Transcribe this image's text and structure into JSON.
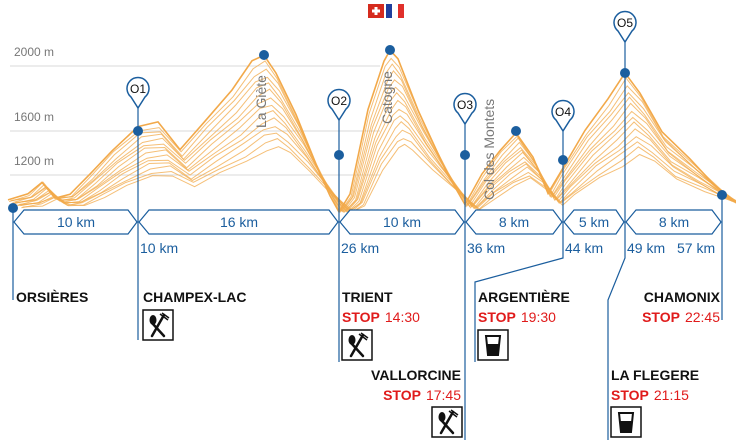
{
  "flags": [
    "swiss-flag-icon",
    "french-flag-icon"
  ],
  "colors": {
    "profile": "#f2a94a",
    "accent": "#1b5e9e",
    "stop": "#e01b1b"
  },
  "altitudes": [
    "2000 m",
    "1600 m",
    "1200 m"
  ],
  "peaks": [
    "La Giète",
    "Catogne",
    "Col des Montets"
  ],
  "checkpoints": [
    "O1",
    "O2",
    "O3",
    "O4",
    "O5"
  ],
  "segments": [
    "10 km",
    "16 km",
    "10 km",
    "8 km",
    "5 km",
    "8 km"
  ],
  "cumulative": [
    "10 km",
    "26 km",
    "36 km",
    "44 km",
    "49 km",
    "57 km"
  ],
  "stations": {
    "orsieres": {
      "name": "ORSIÈRES"
    },
    "champex": {
      "name": "CHAMPEX-LAC",
      "service": "restaurant-icon"
    },
    "trient": {
      "name": "TRIENT",
      "stop": "STOP",
      "time": "14:30",
      "service": "restaurant-icon"
    },
    "vallorcine": {
      "name": "VALLORCINE",
      "stop": "STOP",
      "time": "17:45",
      "service": "restaurant-icon"
    },
    "argentiere": {
      "name": "ARGENTIÈRE",
      "stop": "STOP",
      "time": "19:30",
      "service": "drink-icon"
    },
    "chamonix": {
      "name": "CHAMONIX",
      "stop": "STOP",
      "time": "22:45"
    },
    "laflegere": {
      "name": "LA FLEGERE",
      "stop": "STOP",
      "time": "21:15",
      "service": "drink-icon"
    }
  }
}
